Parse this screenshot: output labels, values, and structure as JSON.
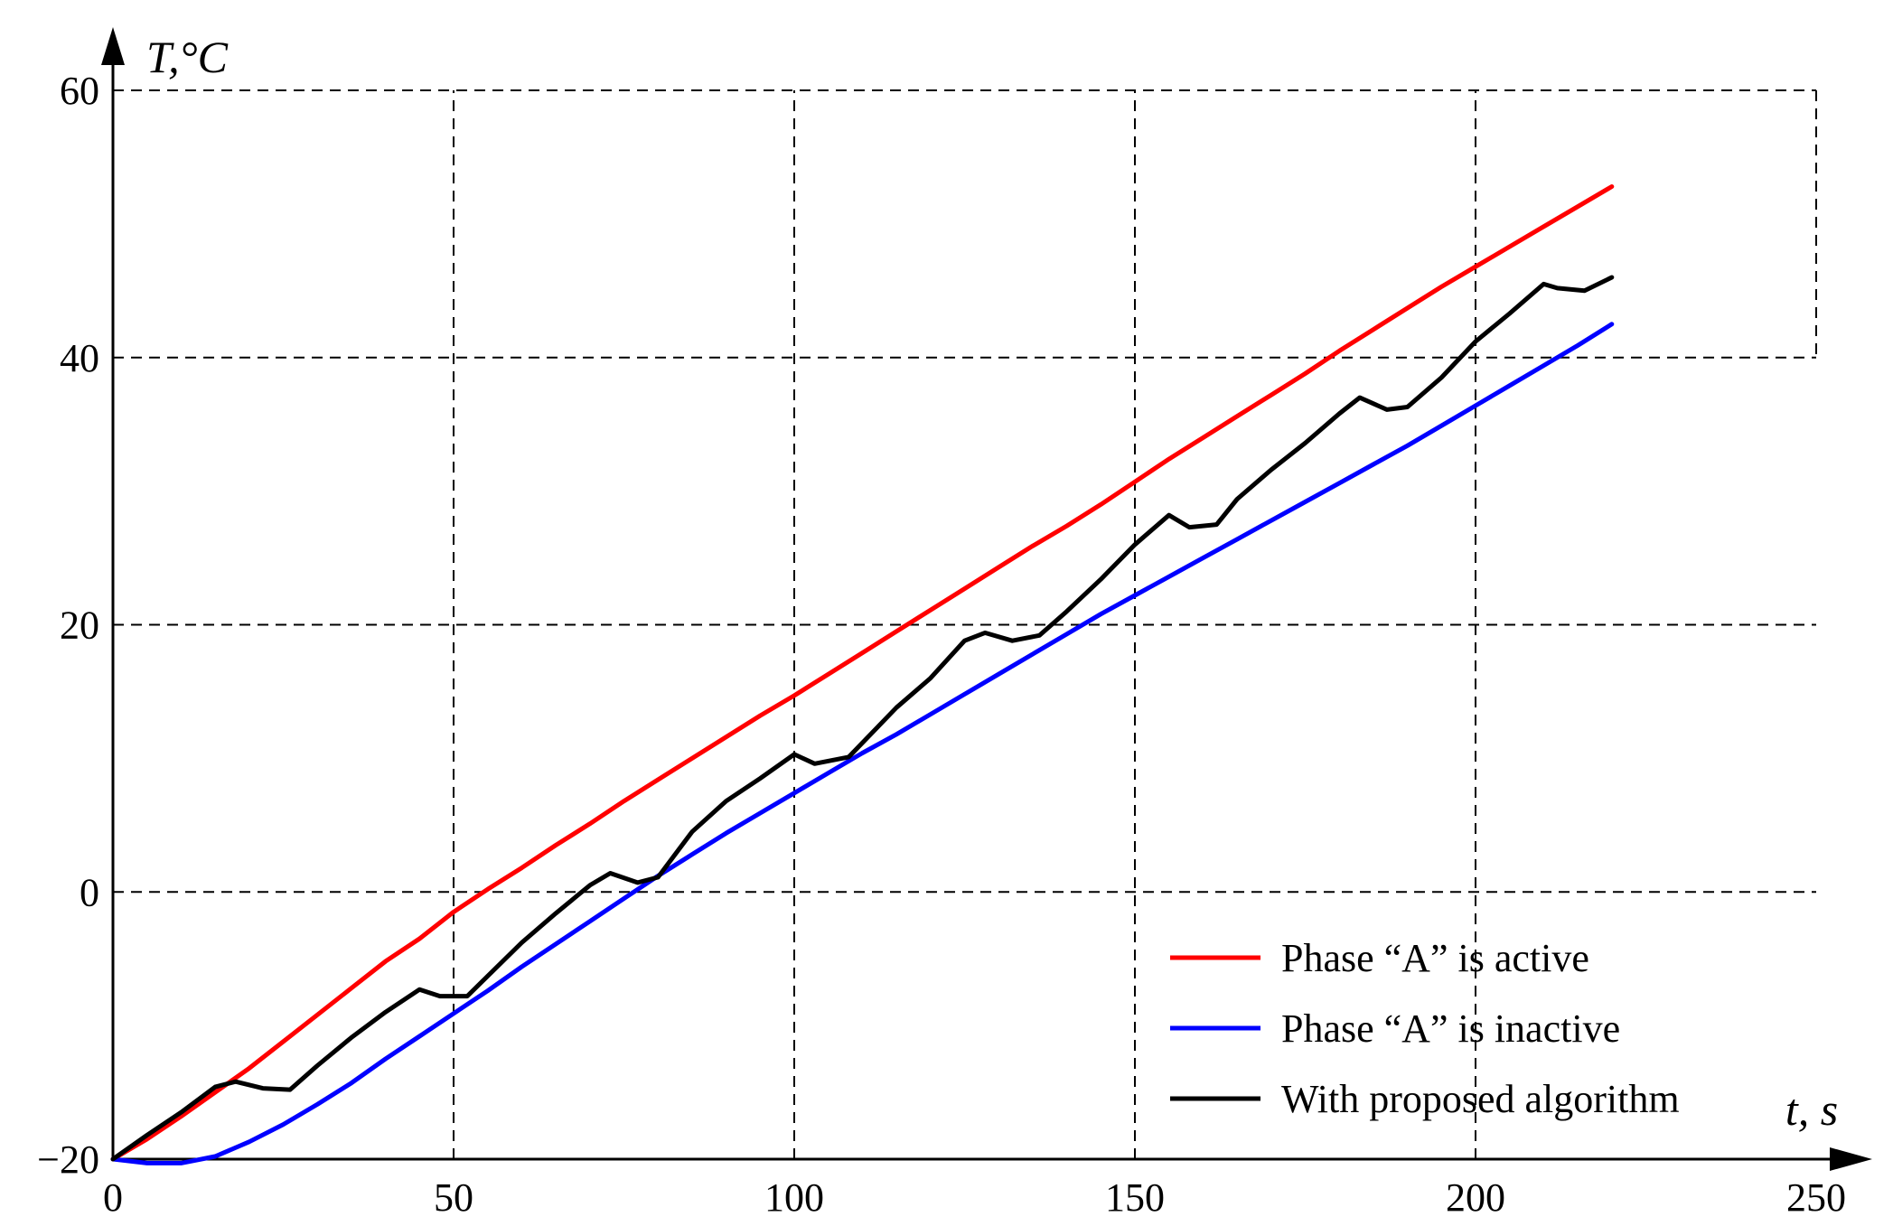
{
  "chart_data": {
    "type": "line",
    "xlabel": "t, s",
    "ylabel": "T,°C",
    "xlim": [
      0,
      250
    ],
    "ylim": [
      -20,
      60
    ],
    "xticks": [
      0,
      50,
      100,
      150,
      200,
      250
    ],
    "yticks": [
      -20,
      0,
      20,
      40,
      60
    ],
    "xtick_labels": [
      "0",
      "50",
      "100",
      "150",
      "200",
      "250"
    ],
    "ytick_labels": [
      "−20",
      "0",
      "20",
      "40",
      "60"
    ],
    "grid": true,
    "legend_position": "bottom-right",
    "series": [
      {
        "name": "Phase “A” is active",
        "color": "#ff0000",
        "x": [
          0,
          5,
          10,
          15,
          20,
          25,
          30,
          35,
          40,
          45,
          50,
          55,
          60,
          65,
          70,
          75,
          80,
          85,
          90,
          95,
          100,
          105,
          110,
          115,
          120,
          125,
          130,
          135,
          140,
          145,
          150,
          155,
          160,
          165,
          170,
          175,
          180,
          185,
          190,
          195,
          200,
          205,
          210,
          215,
          220
        ],
        "y": [
          -20,
          -18.5,
          -16.8,
          -15,
          -13.2,
          -11.2,
          -9.2,
          -7.2,
          -5.2,
          -3.5,
          -1.5,
          0.2,
          1.8,
          3.5,
          5.1,
          6.8,
          8.4,
          10,
          11.6,
          13.2,
          14.7,
          16.3,
          17.9,
          19.5,
          21.1,
          22.7,
          24.3,
          25.9,
          27.4,
          29,
          30.7,
          32.4,
          34,
          35.6,
          37.2,
          38.8,
          40.5,
          42.1,
          43.7,
          45.3,
          46.8,
          48.3,
          49.8,
          51.3,
          52.8
        ]
      },
      {
        "name": "Phase “A” is inactive",
        "color": "#0000ff",
        "x": [
          0,
          5,
          10,
          15,
          20,
          25,
          30,
          35,
          40,
          45,
          50,
          55,
          60,
          65,
          70,
          75,
          80,
          85,
          90,
          95,
          100,
          105,
          110,
          115,
          120,
          125,
          130,
          135,
          140,
          145,
          150,
          155,
          160,
          165,
          170,
          175,
          180,
          185,
          190,
          195,
          200,
          205,
          210,
          215,
          220
        ],
        "y": [
          -20,
          -20.3,
          -20.3,
          -19.8,
          -18.7,
          -17.4,
          -15.9,
          -14.3,
          -12.5,
          -10.8,
          -9.1,
          -7.4,
          -5.6,
          -3.9,
          -2.2,
          -0.5,
          1.2,
          2.8,
          4.4,
          5.9,
          7.4,
          8.9,
          10.4,
          11.8,
          13.3,
          14.8,
          16.3,
          17.8,
          19.3,
          20.8,
          22.2,
          23.6,
          25,
          26.4,
          27.8,
          29.2,
          30.6,
          32,
          33.4,
          34.9,
          36.4,
          37.9,
          39.4,
          40.9,
          42.5
        ]
      },
      {
        "name": "With proposed algorithm",
        "color": "#000000",
        "x": [
          0,
          5,
          10,
          15,
          18,
          22,
          26,
          30,
          35,
          40,
          45,
          48,
          52,
          55,
          60,
          65,
          70,
          73,
          77,
          80,
          85,
          90,
          95,
          100,
          103,
          108,
          115,
          120,
          125,
          128,
          132,
          136,
          140,
          145,
          150,
          155,
          158,
          162,
          165,
          170,
          175,
          180,
          183,
          187,
          190,
          195,
          200,
          205,
          210,
          212,
          216,
          220
        ],
        "y": [
          -20,
          -18.2,
          -16.5,
          -14.6,
          -14.2,
          -14.7,
          -14.8,
          -13,
          -10.9,
          -9,
          -7.3,
          -7.8,
          -7.8,
          -6.3,
          -3.8,
          -1.6,
          0.5,
          1.4,
          0.7,
          1.1,
          4.5,
          6.8,
          8.5,
          10.3,
          9.6,
          10.1,
          13.8,
          16,
          18.8,
          19.4,
          18.8,
          19.2,
          21,
          23.4,
          26,
          28.2,
          27.3,
          27.5,
          29.4,
          31.6,
          33.6,
          35.8,
          37,
          36.1,
          36.3,
          38.5,
          41.2,
          43.3,
          45.5,
          45.2,
          45,
          46
        ]
      }
    ]
  }
}
